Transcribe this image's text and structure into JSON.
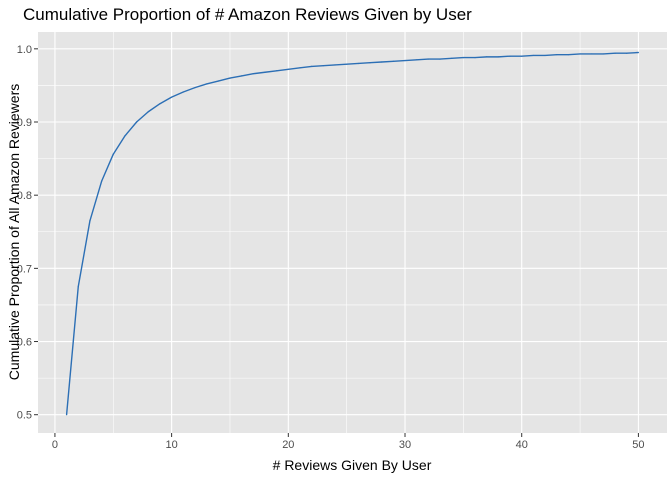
{
  "chart_data": {
    "type": "line",
    "title": "Cumulative Proportion of # Amazon Reviews Given by User",
    "xlabel": "# Reviews Given By User",
    "ylabel": "Cumulative Proportion of All Amazon Reviewers",
    "xlim": [
      -1.45,
      52.45
    ],
    "ylim": [
      0.475,
      1.023
    ],
    "x_ticks": [
      0,
      10,
      20,
      30,
      40,
      50
    ],
    "y_ticks": [
      0.5,
      0.6,
      0.7,
      0.8,
      0.9,
      1.0
    ],
    "x_tick_labels": [
      "0",
      "10",
      "20",
      "30",
      "40",
      "50"
    ],
    "y_tick_labels": [
      "0.5",
      "0.6",
      "0.7",
      "0.8",
      "0.9",
      "1.0"
    ],
    "grid": true,
    "legend": "none",
    "colors": {
      "line": "#2c6fb5",
      "panel": "#e5e5e5",
      "grid": "#ffffff"
    },
    "series": [
      {
        "x": [
          1,
          2,
          3,
          4,
          5,
          6,
          7,
          8,
          9,
          10,
          11,
          12,
          13,
          14,
          15,
          16,
          17,
          18,
          19,
          20,
          21,
          22,
          23,
          24,
          25,
          26,
          27,
          28,
          29,
          30,
          31,
          32,
          33,
          34,
          35,
          36,
          37,
          38,
          39,
          40,
          41,
          42,
          43,
          44,
          45,
          46,
          47,
          48,
          49,
          50
        ],
        "values": [
          0.5,
          0.675,
          0.765,
          0.819,
          0.856,
          0.881,
          0.9,
          0.914,
          0.925,
          0.934,
          0.941,
          0.947,
          0.952,
          0.956,
          0.96,
          0.963,
          0.966,
          0.968,
          0.97,
          0.972,
          0.974,
          0.976,
          0.977,
          0.978,
          0.979,
          0.98,
          0.981,
          0.982,
          0.983,
          0.984,
          0.985,
          0.986,
          0.986,
          0.987,
          0.988,
          0.988,
          0.989,
          0.989,
          0.99,
          0.99,
          0.991,
          0.991,
          0.992,
          0.992,
          0.993,
          0.993,
          0.993,
          0.994,
          0.994,
          0.995
        ]
      }
    ]
  }
}
